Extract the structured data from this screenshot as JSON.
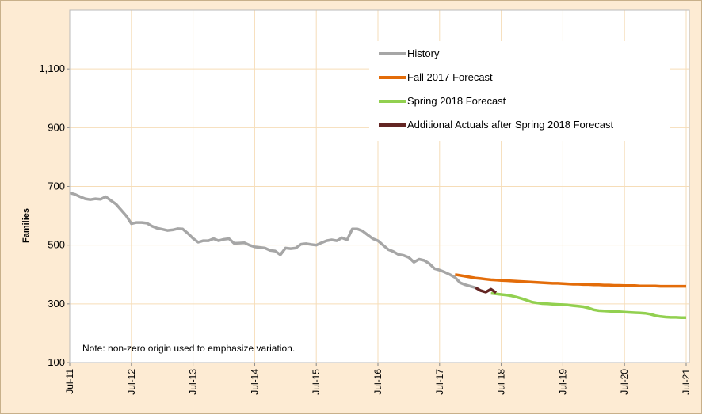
{
  "chart_data": {
    "type": "line",
    "y_label": "Families",
    "annotation": "Note: non-zero origin used to emphasize variation.",
    "categories": [
      "Jul-11",
      null,
      null,
      null,
      null,
      null,
      null,
      null,
      null,
      null,
      null,
      null,
      "Jul-12",
      null,
      null,
      null,
      null,
      null,
      null,
      null,
      null,
      null,
      null,
      null,
      "Jul-13",
      null,
      null,
      null,
      null,
      null,
      null,
      null,
      null,
      null,
      null,
      null,
      "Jul-14",
      null,
      null,
      null,
      null,
      null,
      null,
      null,
      null,
      null,
      null,
      null,
      "Jul-15",
      null,
      null,
      null,
      null,
      null,
      null,
      null,
      null,
      null,
      null,
      null,
      "Jul-16",
      null,
      null,
      null,
      null,
      null,
      null,
      null,
      null,
      null,
      null,
      null,
      "Jul-17",
      null,
      null,
      null,
      null,
      null,
      null,
      null,
      null,
      null,
      null,
      null,
      "Jul-18",
      null,
      null,
      null,
      null,
      null,
      null,
      null,
      null,
      null,
      null,
      null,
      "Jul-19",
      null,
      null,
      null,
      null,
      null,
      null,
      null,
      null,
      null,
      null,
      null,
      "Jul-20",
      null,
      null,
      null,
      null,
      null,
      null,
      null,
      null,
      null,
      null,
      null,
      "Jul-21"
    ],
    "series": [
      {
        "name": "History",
        "color": "#a6a6a6",
        "values": [
          678,
          673,
          665,
          658,
          655,
          658,
          656,
          665,
          652,
          640,
          620,
          600,
          573,
          577,
          577,
          575,
          565,
          558,
          554,
          550,
          552,
          556,
          555,
          540,
          523,
          510,
          515,
          515,
          522,
          515,
          520,
          522,
          506,
          507,
          508,
          500,
          494,
          492,
          490,
          482,
          480,
          467,
          490,
          488,
          490,
          503,
          505,
          502,
          500,
          508,
          515,
          518,
          515,
          525,
          518,
          555,
          555,
          548,
          535,
          522,
          515,
          500,
          485,
          478,
          468,
          465,
          458,
          442,
          452,
          448,
          437,
          420,
          415,
          408,
          400,
          390,
          372,
          365,
          360,
          355,
          null,
          null,
          null,
          null,
          null,
          null,
          null,
          null,
          null,
          null,
          null,
          null,
          null,
          null,
          null,
          null,
          null,
          null,
          null,
          null,
          null,
          null,
          null,
          null,
          null,
          null,
          null,
          null,
          null,
          null,
          null,
          null,
          null,
          null,
          null,
          null,
          null,
          null,
          null,
          null,
          null
        ]
      },
      {
        "name": "Fall 2017 Forecast",
        "color": "#e36c09",
        "values": [
          null,
          null,
          null,
          null,
          null,
          null,
          null,
          null,
          null,
          null,
          null,
          null,
          null,
          null,
          null,
          null,
          null,
          null,
          null,
          null,
          null,
          null,
          null,
          null,
          null,
          null,
          null,
          null,
          null,
          null,
          null,
          null,
          null,
          null,
          null,
          null,
          null,
          null,
          null,
          null,
          null,
          null,
          null,
          null,
          null,
          null,
          null,
          null,
          null,
          null,
          null,
          null,
          null,
          null,
          null,
          null,
          null,
          null,
          null,
          null,
          null,
          null,
          null,
          null,
          null,
          null,
          null,
          null,
          null,
          null,
          null,
          null,
          null,
          null,
          null,
          400,
          397,
          394,
          391,
          388,
          386,
          384,
          382,
          381,
          380,
          379,
          378,
          377,
          376,
          375,
          374,
          373,
          372,
          371,
          370,
          370,
          369,
          368,
          367,
          367,
          366,
          366,
          365,
          365,
          364,
          364,
          363,
          363,
          362,
          362,
          362,
          361,
          361,
          361,
          361,
          360,
          360,
          360,
          360,
          360,
          360
        ]
      },
      {
        "name": "Spring 2018 Forecast",
        "color": "#92d050",
        "values": [
          null,
          null,
          null,
          null,
          null,
          null,
          null,
          null,
          null,
          null,
          null,
          null,
          null,
          null,
          null,
          null,
          null,
          null,
          null,
          null,
          null,
          null,
          null,
          null,
          null,
          null,
          null,
          null,
          null,
          null,
          null,
          null,
          null,
          null,
          null,
          null,
          null,
          null,
          null,
          null,
          null,
          null,
          null,
          null,
          null,
          null,
          null,
          null,
          null,
          null,
          null,
          null,
          null,
          null,
          null,
          null,
          null,
          null,
          null,
          null,
          null,
          null,
          null,
          null,
          null,
          null,
          null,
          null,
          null,
          null,
          null,
          null,
          null,
          null,
          null,
          null,
          null,
          null,
          null,
          null,
          null,
          null,
          336,
          334,
          332,
          330,
          327,
          323,
          318,
          312,
          306,
          303,
          301,
          300,
          299,
          298,
          297,
          296,
          294,
          292,
          290,
          286,
          280,
          277,
          276,
          275,
          274,
          273,
          272,
          271,
          270,
          269,
          268,
          265,
          260,
          257,
          255,
          254,
          254,
          253,
          253
        ]
      },
      {
        "name": "Additional Actuals after Spring 2018 Forecast",
        "color": "#632523",
        "values": [
          null,
          null,
          null,
          null,
          null,
          null,
          null,
          null,
          null,
          null,
          null,
          null,
          null,
          null,
          null,
          null,
          null,
          null,
          null,
          null,
          null,
          null,
          null,
          null,
          null,
          null,
          null,
          null,
          null,
          null,
          null,
          null,
          null,
          null,
          null,
          null,
          null,
          null,
          null,
          null,
          null,
          null,
          null,
          null,
          null,
          null,
          null,
          null,
          null,
          null,
          null,
          null,
          null,
          null,
          null,
          null,
          null,
          null,
          null,
          null,
          null,
          null,
          null,
          null,
          null,
          null,
          null,
          null,
          null,
          null,
          null,
          null,
          null,
          null,
          null,
          null,
          null,
          null,
          null,
          355,
          345,
          340,
          350,
          338,
          null,
          null,
          null,
          null,
          null,
          null,
          null,
          null,
          null,
          null,
          null,
          null,
          null,
          null,
          null,
          null,
          null,
          null,
          null,
          null,
          null,
          null,
          null,
          null,
          null,
          null,
          null,
          null,
          null,
          null,
          null,
          null,
          null,
          null,
          null,
          null,
          null
        ]
      }
    ],
    "ylim": [
      100,
      1300
    ],
    "yticks": [
      100,
      300,
      500,
      700,
      900,
      {
        "value": 1100,
        "label": "1,100"
      }
    ],
    "grid": true,
    "legend_position": "upper right"
  }
}
